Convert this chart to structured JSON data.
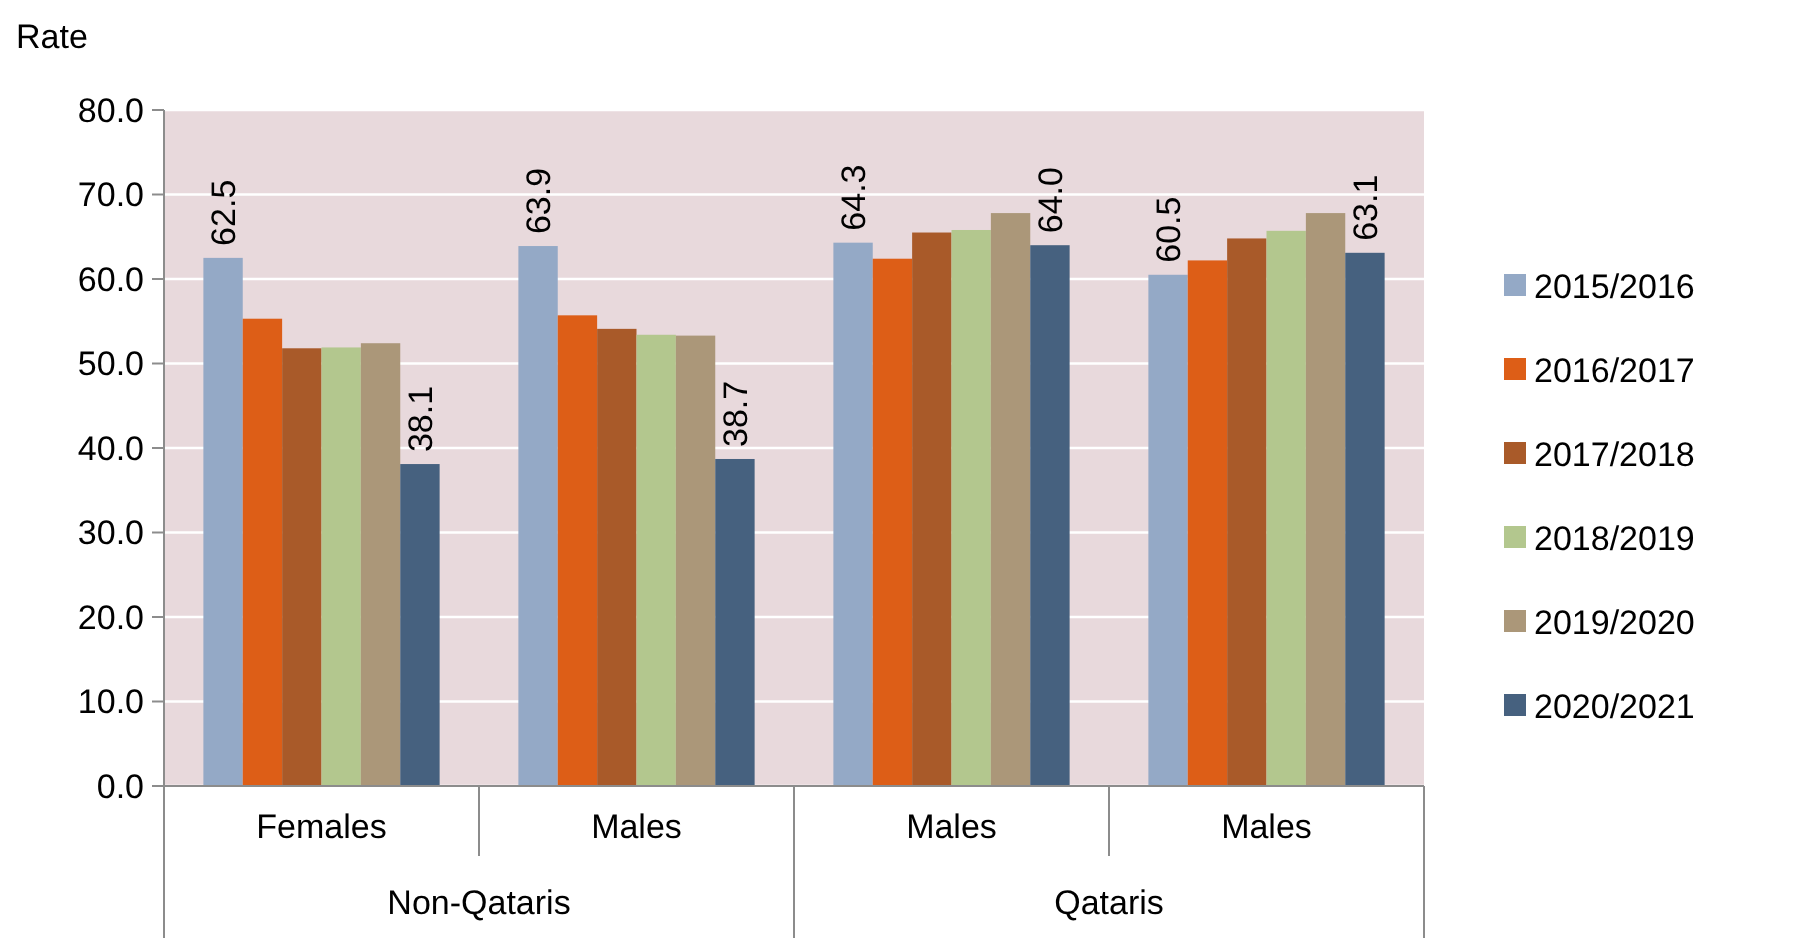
{
  "chart_data": {
    "type": "bar",
    "ylabel": "Rate",
    "categories": [
      "Females",
      "Males",
      "Males",
      "Males"
    ],
    "annotations": [
      "Non-Qataris",
      "Qataris"
    ],
    "ylim": [
      0,
      80
    ],
    "yticks": [
      {
        "value": 0,
        "label": "0.0"
      },
      {
        "value": 10,
        "label": "10.0"
      },
      {
        "value": 20,
        "label": "20.0"
      },
      {
        "value": 30,
        "label": "30.0"
      },
      {
        "value": 40,
        "label": "40.0"
      },
      {
        "value": 50,
        "label": "50.0"
      },
      {
        "value": 60,
        "label": "60.0"
      },
      {
        "value": 70,
        "label": "70.0"
      },
      {
        "value": 80,
        "label": "80.0"
      }
    ],
    "grid": "y",
    "legend": "right",
    "series": [
      {
        "name": "2015/2016",
        "color": "#94a9c6",
        "values": [
          62.5,
          63.9,
          64.3,
          60.5
        ],
        "value_labels": [
          "62.5",
          "63.9",
          "64.3",
          "60.5"
        ]
      },
      {
        "name": "2016/2017",
        "color": "#dd5e17",
        "values": [
          55.3,
          55.7,
          62.4,
          62.2
        ]
      },
      {
        "name": "2017/2018",
        "color": "#a95a29",
        "values": [
          51.8,
          54.1,
          65.5,
          64.8
        ]
      },
      {
        "name": "2018/2019",
        "color": "#b3c78e",
        "values": [
          51.9,
          53.4,
          65.8,
          65.7
        ]
      },
      {
        "name": "2019/2020",
        "color": "#ab9779",
        "values": [
          52.4,
          53.3,
          67.8,
          67.8
        ]
      },
      {
        "name": "2020/2021",
        "color": "#46617f",
        "values": [
          38.1,
          38.7,
          64.0,
          63.1
        ],
        "value_labels": [
          "38.1",
          "38.7",
          "64.0",
          "63.1"
        ]
      }
    ]
  }
}
